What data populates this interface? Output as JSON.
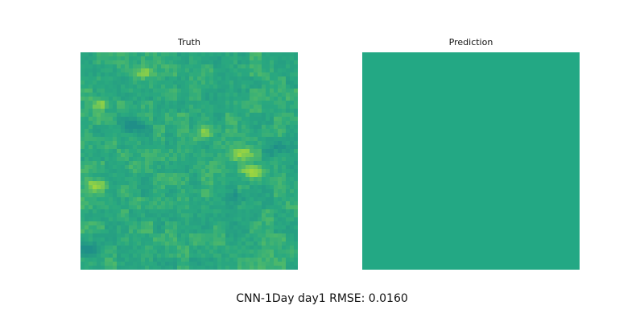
{
  "chart_data": [
    {
      "type": "heatmap",
      "title": "Truth",
      "grid_rows": 54,
      "grid_cols": 54,
      "colormap": "viridis",
      "axes_visible": false,
      "description": "Noisy spatial field dominated by green-teal values with scattered yellow-green bright patches and a few darker teal spots.",
      "base_color": "#2aa97f",
      "colors": {
        "dark": "#1f8f88",
        "mid": "#2aa97f",
        "bright": "#6ac55a",
        "brightest": "#a8d83a"
      },
      "highlights": [
        {
          "label": "bright patch",
          "row": 29.5,
          "col": 42.5,
          "intensity": 1.0
        },
        {
          "label": "bright patch",
          "row": 32.5,
          "col": 3.5,
          "intensity": 0.95
        },
        {
          "label": "bright patch",
          "row": 24.5,
          "col": 39.5,
          "intensity": 0.75
        },
        {
          "label": "bright patch",
          "row": 4.5,
          "col": 14.5,
          "intensity": 0.7
        },
        {
          "label": "bright patch",
          "row": 12.5,
          "col": 4.5,
          "intensity": 0.7
        },
        {
          "label": "bright patch",
          "row": 19.5,
          "col": 29.5,
          "intensity": 0.6
        },
        {
          "label": "dark spot",
          "row": 17.5,
          "col": 12.5,
          "intensity": -0.9
        },
        {
          "label": "dark spot",
          "row": 48.5,
          "col": 1.5,
          "intensity": -0.8
        },
        {
          "label": "dark spot",
          "row": 23.5,
          "col": 48.5,
          "intensity": -0.6
        },
        {
          "label": "dark spot",
          "row": 35.5,
          "col": 38.5,
          "intensity": -0.5
        }
      ]
    },
    {
      "type": "heatmap",
      "title": "Prediction",
      "grid_rows": 54,
      "grid_cols": 54,
      "colormap": "viridis",
      "axes_visible": false,
      "description": "Uniform single-color field.",
      "base_color": "#23a884"
    }
  ],
  "figure": {
    "caption": "CNN-1Day day1 RMSE: 0.0160",
    "model": "CNN-1Day",
    "day": "day1",
    "rmse": 0.016
  }
}
